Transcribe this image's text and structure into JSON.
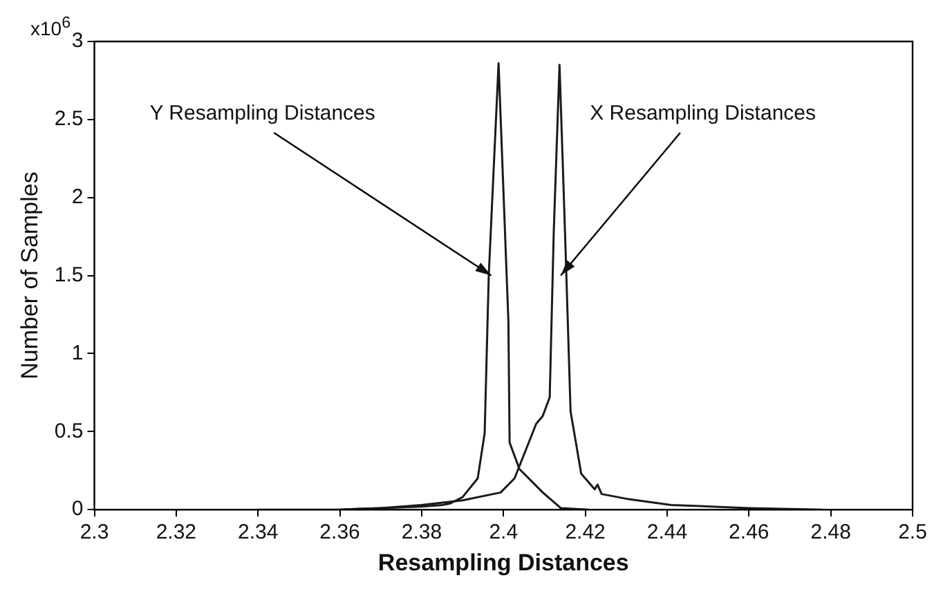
{
  "chart_data": {
    "type": "line",
    "xlabel": "Resampling Distances",
    "ylabel": "Number of Samples",
    "series": [
      {
        "color": "#1a1a1a",
        "x": [
          2.34,
          2.36,
          2.37,
          2.38,
          2.385,
          2.387,
          2.39,
          2.3937,
          2.3954,
          2.3964,
          2.3988,
          2.4012,
          2.4015,
          2.4039,
          2.4096,
          2.414,
          2.4208
        ],
        "values": [
          0,
          0,
          0.01,
          0.02,
          0.03,
          0.04,
          0.08,
          0.2,
          0.49,
          1.5,
          2.86,
          1.21,
          0.43,
          0.26,
          0.11,
          0.01,
          0
        ]
      },
      {
        "color": "#1a1a1a",
        "x": [
          2.36,
          2.37,
          2.38,
          2.39,
          2.3993,
          2.4027,
          2.408,
          2.4096,
          2.4113,
          2.4123,
          2.4137,
          2.4151,
          2.4164,
          2.419,
          2.4223,
          2.423,
          2.424,
          2.43,
          2.441,
          2.46,
          2.478
        ],
        "values": [
          0,
          0.01,
          0.03,
          0.06,
          0.11,
          0.2,
          0.55,
          0.6,
          0.72,
          1.79,
          2.85,
          1.73,
          0.63,
          0.23,
          0.13,
          0.16,
          0.1,
          0.07,
          0.03,
          0.01,
          0
        ]
      }
    ],
    "xlim": [
      2.3,
      2.5
    ],
    "xticks": [
      2.3,
      2.32,
      2.34,
      2.36,
      2.38,
      2.4,
      2.42,
      2.44,
      2.46,
      2.48,
      2.5
    ],
    "ylim": [
      0,
      3
    ],
    "yticks": [
      0,
      0.5,
      1,
      1.5,
      2,
      2.5,
      3
    ],
    "annotations": [
      "x10$^{6}$",
      {
        "text": "Y Resampling Distances",
        "x": 2.397,
        "y": 1.5
      },
      {
        "text": "X Resampling Distances",
        "x": 2.414,
        "y": 1.5
      }
    ],
    "grid": false,
    "legend": false,
    "marker": "none",
    "line_style": "solid"
  }
}
